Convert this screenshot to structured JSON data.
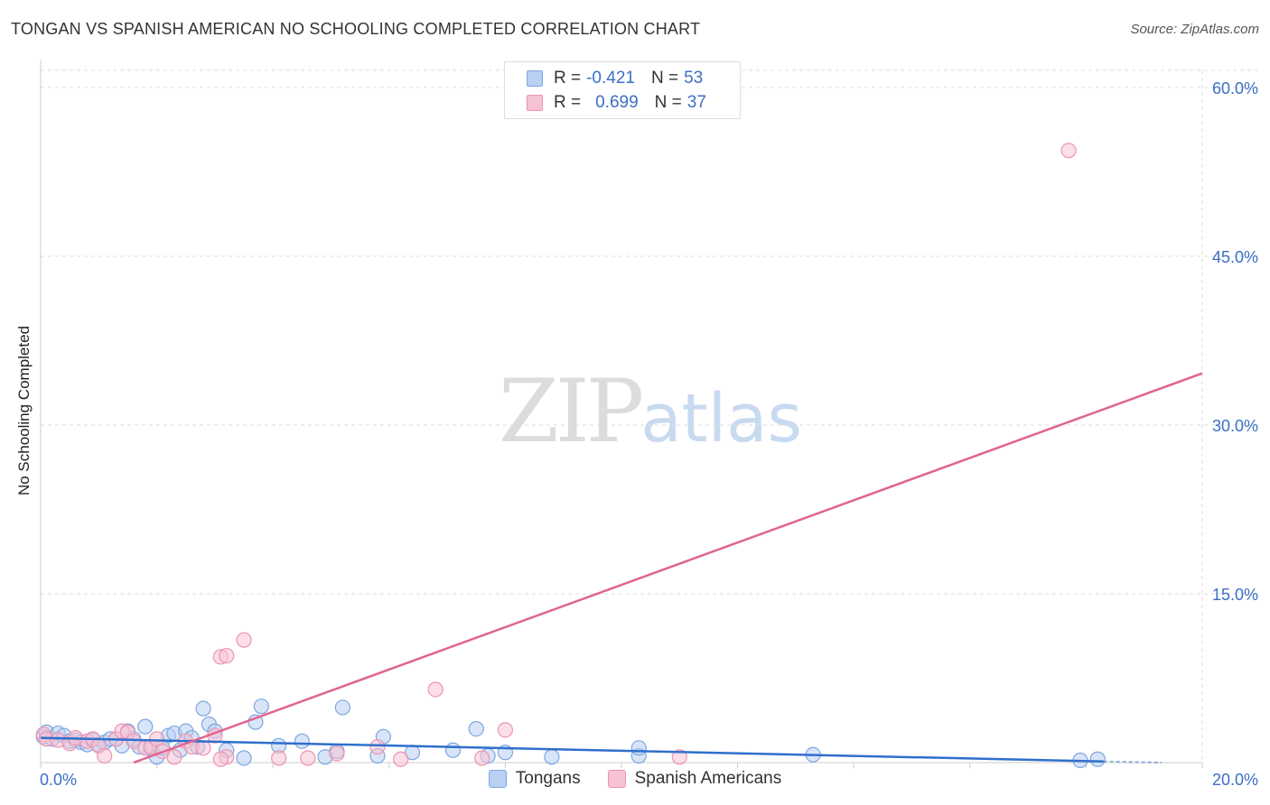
{
  "title": "TONGAN VS SPANISH AMERICAN NO SCHOOLING COMPLETED CORRELATION CHART",
  "source": "Source: ZipAtlas.com",
  "watermark": {
    "zip": "ZIP",
    "atlas": "atlas"
  },
  "colors": {
    "tongans_fill": "#b8d0f2",
    "tongans_stroke": "#7ea6e0",
    "tongans_line": "#2f6fcc",
    "spanish_fill": "#f7c3d3",
    "spanish_stroke": "#ee94b1",
    "spanish_line": "#e0648e",
    "axis_text": "#3a6fc4",
    "grid": "#dddddd"
  },
  "legend": {
    "rows": [
      {
        "r_label": "R =",
        "r_value": "-0.421",
        "n_label": "N =",
        "n_value": "53"
      },
      {
        "r_label": "R =",
        "r_value": "0.699",
        "n_label": "N =",
        "n_value": "37"
      }
    ]
  },
  "chart_data": {
    "type": "scatter",
    "title": "TONGAN VS SPANISH AMERICAN NO SCHOOLING COMPLETED CORRELATION CHART",
    "xlabel": "",
    "ylabel": "No Schooling Completed",
    "xlim": [
      0,
      20
    ],
    "ylim": [
      0,
      60
    ],
    "x_tick_labels": [
      "0.0%",
      "20.0%"
    ],
    "y_ticks": [
      15,
      30,
      45,
      60
    ],
    "y_tick_labels": [
      "15.0%",
      "30.0%",
      "45.0%",
      "60.0%"
    ],
    "grid": true,
    "legend_position": "bottom",
    "series": [
      {
        "name": "Tongans",
        "r": -0.421,
        "n": 53,
        "trend": {
          "x": [
            0,
            18.3
          ],
          "y": [
            2.2,
            0.1
          ]
        },
        "points": [
          {
            "x": 0.05,
            "y": 2.3
          },
          {
            "x": 0.1,
            "y": 2.7
          },
          {
            "x": 0.2,
            "y": 2.1
          },
          {
            "x": 0.3,
            "y": 2.6
          },
          {
            "x": 0.4,
            "y": 2.4
          },
          {
            "x": 0.5,
            "y": 1.9
          },
          {
            "x": 0.6,
            "y": 2.0
          },
          {
            "x": 0.7,
            "y": 1.8
          },
          {
            "x": 0.8,
            "y": 1.6
          },
          {
            "x": 0.9,
            "y": 2.0
          },
          {
            "x": 1.0,
            "y": 1.6
          },
          {
            "x": 1.1,
            "y": 1.8
          },
          {
            "x": 1.2,
            "y": 2.1
          },
          {
            "x": 1.3,
            "y": 2.1
          },
          {
            "x": 1.4,
            "y": 1.5
          },
          {
            "x": 1.5,
            "y": 2.8
          },
          {
            "x": 1.6,
            "y": 2.1
          },
          {
            "x": 1.7,
            "y": 1.4
          },
          {
            "x": 1.8,
            "y": 3.2
          },
          {
            "x": 1.9,
            "y": 1.2
          },
          {
            "x": 2.0,
            "y": 0.5
          },
          {
            "x": 2.1,
            "y": 1.3
          },
          {
            "x": 2.2,
            "y": 2.4
          },
          {
            "x": 2.3,
            "y": 2.6
          },
          {
            "x": 2.4,
            "y": 1.1
          },
          {
            "x": 2.5,
            "y": 2.8
          },
          {
            "x": 2.6,
            "y": 2.2
          },
          {
            "x": 2.7,
            "y": 1.4
          },
          {
            "x": 2.8,
            "y": 4.8
          },
          {
            "x": 2.9,
            "y": 3.4
          },
          {
            "x": 3.0,
            "y": 2.8
          },
          {
            "x": 3.2,
            "y": 1.1
          },
          {
            "x": 3.5,
            "y": 0.4
          },
          {
            "x": 3.7,
            "y": 3.6
          },
          {
            "x": 3.8,
            "y": 5.0
          },
          {
            "x": 4.1,
            "y": 1.5
          },
          {
            "x": 4.5,
            "y": 1.9
          },
          {
            "x": 4.9,
            "y": 0.5
          },
          {
            "x": 5.1,
            "y": 1.0
          },
          {
            "x": 5.2,
            "y": 4.9
          },
          {
            "x": 5.8,
            "y": 0.6
          },
          {
            "x": 5.9,
            "y": 2.3
          },
          {
            "x": 6.4,
            "y": 0.9
          },
          {
            "x": 7.1,
            "y": 1.1
          },
          {
            "x": 7.5,
            "y": 3.0
          },
          {
            "x": 7.7,
            "y": 0.6
          },
          {
            "x": 8.0,
            "y": 0.9
          },
          {
            "x": 8.8,
            "y": 0.5
          },
          {
            "x": 10.3,
            "y": 0.6
          },
          {
            "x": 10.3,
            "y": 1.3
          },
          {
            "x": 13.3,
            "y": 0.7
          },
          {
            "x": 17.9,
            "y": 0.2
          },
          {
            "x": 18.2,
            "y": 0.3
          }
        ]
      },
      {
        "name": "Spanish Americans",
        "r": 0.699,
        "n": 37,
        "trend": {
          "x": [
            1.6,
            20.0
          ],
          "y": [
            0.0,
            34.6
          ]
        },
        "points": [
          {
            "x": 0.05,
            "y": 2.5
          },
          {
            "x": 0.1,
            "y": 2.1
          },
          {
            "x": 0.3,
            "y": 2.0
          },
          {
            "x": 0.5,
            "y": 1.7
          },
          {
            "x": 0.6,
            "y": 2.2
          },
          {
            "x": 0.8,
            "y": 1.9
          },
          {
            "x": 0.9,
            "y": 2.1
          },
          {
            "x": 1.0,
            "y": 1.5
          },
          {
            "x": 1.1,
            "y": 0.6
          },
          {
            "x": 1.3,
            "y": 2.1
          },
          {
            "x": 1.4,
            "y": 2.8
          },
          {
            "x": 1.5,
            "y": 2.7
          },
          {
            "x": 1.6,
            "y": 1.9
          },
          {
            "x": 1.8,
            "y": 1.3
          },
          {
            "x": 1.9,
            "y": 1.4
          },
          {
            "x": 2.0,
            "y": 2.1
          },
          {
            "x": 2.1,
            "y": 1.0
          },
          {
            "x": 2.3,
            "y": 0.5
          },
          {
            "x": 2.5,
            "y": 1.9
          },
          {
            "x": 2.6,
            "y": 1.4
          },
          {
            "x": 2.8,
            "y": 1.3
          },
          {
            "x": 3.0,
            "y": 2.4
          },
          {
            "x": 3.2,
            "y": 0.5
          },
          {
            "x": 3.1,
            "y": 0.3
          },
          {
            "x": 3.1,
            "y": 9.4
          },
          {
            "x": 3.2,
            "y": 9.5
          },
          {
            "x": 3.5,
            "y": 10.9
          },
          {
            "x": 4.1,
            "y": 0.4
          },
          {
            "x": 4.6,
            "y": 0.4
          },
          {
            "x": 5.1,
            "y": 0.8
          },
          {
            "x": 5.8,
            "y": 1.4
          },
          {
            "x": 6.2,
            "y": 0.3
          },
          {
            "x": 6.8,
            "y": 6.5
          },
          {
            "x": 7.6,
            "y": 0.4
          },
          {
            "x": 8.0,
            "y": 2.9
          },
          {
            "x": 11.0,
            "y": 0.5
          },
          {
            "x": 17.7,
            "y": 54.4
          }
        ]
      }
    ]
  }
}
